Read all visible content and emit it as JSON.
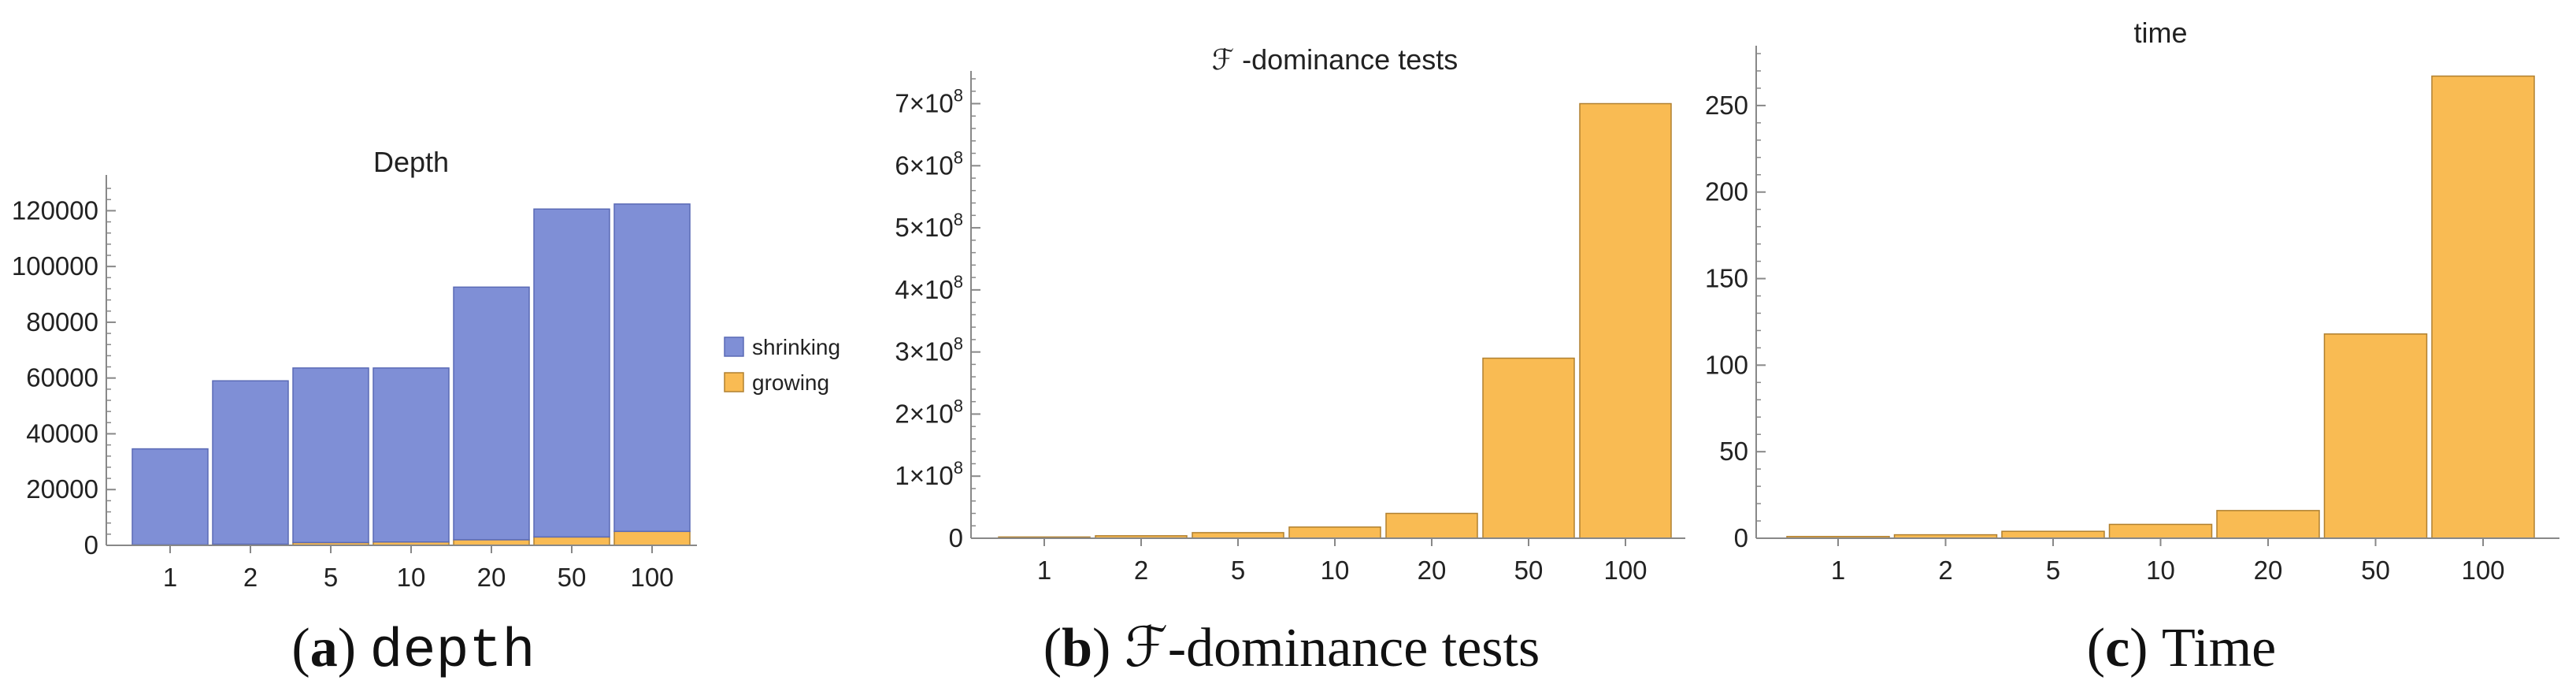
{
  "colors": {
    "shrinking": "#7f8fd6",
    "shrinking_stroke": "#5a6ab5",
    "growing": "#f9bb53",
    "growing_stroke": "#b08030"
  },
  "captions": [
    {
      "open": "(",
      "letter": "a",
      "close": ")",
      "text": "depth",
      "style": "mono"
    },
    {
      "open": "(",
      "letter": "b",
      "close": ")",
      "text": "ℱ-dominance tests",
      "style": "serif"
    },
    {
      "open": "(",
      "letter": "c",
      "close": ")",
      "text": "Time",
      "style": "serif"
    }
  ],
  "chart_data": [
    {
      "type": "bar",
      "stacked": true,
      "title": "Depth",
      "xlabel": "",
      "ylabel": "",
      "categories": [
        "1",
        "2",
        "5",
        "10",
        "20",
        "50",
        "100"
      ],
      "series": [
        {
          "name": "growing",
          "values": [
            200,
            400,
            1000,
            1200,
            2000,
            3000,
            5000
          ]
        },
        {
          "name": "shrinking",
          "values": [
            34400,
            58600,
            62600,
            62400,
            90600,
            117600,
            117400
          ]
        }
      ],
      "ylim": [
        0,
        130000
      ],
      "yticks": [
        0,
        20000,
        40000,
        60000,
        80000,
        100000,
        120000
      ],
      "ytick_labels": [
        "0",
        "20000",
        "40000",
        "60000",
        "80000",
        "100000",
        "120000"
      ],
      "legend": {
        "position": "right",
        "entries": [
          "shrinking",
          "growing"
        ]
      },
      "grid": false
    },
    {
      "type": "bar",
      "title": "ℱ -dominance tests",
      "xlabel": "",
      "ylabel": "",
      "categories": [
        "1",
        "2",
        "5",
        "10",
        "20",
        "50",
        "100"
      ],
      "series": [
        {
          "name": "",
          "values": [
            2000000,
            4000000,
            9000000,
            18000000,
            40000000,
            290000000,
            700000000
          ]
        }
      ],
      "ylim": [
        0,
        740000000
      ],
      "yticks": [
        0,
        100000000,
        200000000,
        300000000,
        400000000,
        500000000,
        600000000,
        700000000
      ],
      "ytick_labels": [
        {
          "base": "0",
          "exp": ""
        },
        {
          "base": "1×10",
          "exp": "8"
        },
        {
          "base": "2×10",
          "exp": "8"
        },
        {
          "base": "3×10",
          "exp": "8"
        },
        {
          "base": "4×10",
          "exp": "8"
        },
        {
          "base": "5×10",
          "exp": "8"
        },
        {
          "base": "6×10",
          "exp": "8"
        },
        {
          "base": "7×10",
          "exp": "8"
        }
      ],
      "grid": false
    },
    {
      "type": "bar",
      "title": "time",
      "xlabel": "",
      "ylabel": "",
      "categories": [
        "1",
        "2",
        "5",
        "10",
        "20",
        "50",
        "100"
      ],
      "series": [
        {
          "name": "",
          "values": [
            1,
            2,
            4,
            8,
            16,
            118,
            267
          ]
        }
      ],
      "ylim": [
        0,
        280
      ],
      "yticks": [
        0,
        50,
        100,
        150,
        200,
        250
      ],
      "ytick_labels": [
        "0",
        "50",
        "100",
        "150",
        "200",
        "250"
      ],
      "grid": false
    }
  ]
}
